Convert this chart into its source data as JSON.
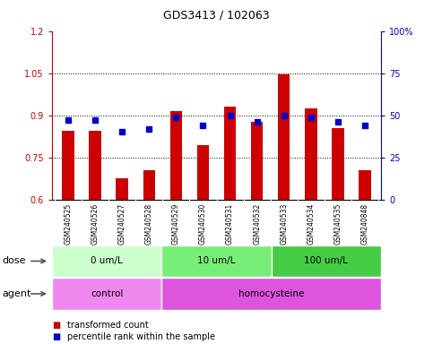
{
  "title": "GDS3413 / 102063",
  "samples": [
    "GSM240525",
    "GSM240526",
    "GSM240527",
    "GSM240528",
    "GSM240529",
    "GSM240530",
    "GSM240531",
    "GSM240532",
    "GSM240533",
    "GSM240534",
    "GSM240535",
    "GSM240848"
  ],
  "bar_values": [
    0.845,
    0.845,
    0.675,
    0.705,
    0.915,
    0.795,
    0.93,
    0.875,
    1.045,
    0.925,
    0.855,
    0.705
  ],
  "dot_values": [
    47,
    47,
    40,
    42,
    49,
    44,
    50,
    46,
    50,
    49,
    46,
    44
  ],
  "ylim_left": [
    0.6,
    1.2
  ],
  "ylim_right": [
    0,
    100
  ],
  "yticks_left": [
    0.6,
    0.75,
    0.9,
    1.05,
    1.2
  ],
  "yticks_right": [
    0,
    25,
    50,
    75,
    100
  ],
  "ytick_labels_left": [
    "0.6",
    "0.75",
    "0.9",
    "1.05",
    "1.2"
  ],
  "ytick_labels_right": [
    "0",
    "25",
    "50",
    "75",
    "100%"
  ],
  "bar_color": "#cc0000",
  "dot_color": "#0000cc",
  "dose_groups": [
    {
      "label": "0 um/L",
      "start": 0,
      "end": 4,
      "color": "#ccffcc"
    },
    {
      "label": "10 um/L",
      "start": 4,
      "end": 8,
      "color": "#77ee77"
    },
    {
      "label": "100 um/L",
      "start": 8,
      "end": 12,
      "color": "#44cc44"
    }
  ],
  "agent_groups": [
    {
      "label": "control",
      "start": 0,
      "end": 4,
      "color": "#ee88ee"
    },
    {
      "label": "homocysteine",
      "start": 4,
      "end": 12,
      "color": "#dd55dd"
    }
  ],
  "dose_label": "dose",
  "agent_label": "agent",
  "legend_bar_label": "transformed count",
  "legend_dot_label": "percentile rank within the sample",
  "dotted_line_values": [
    0.75,
    0.9,
    1.05
  ],
  "bg_color": "#ffffff",
  "sample_bg_color": "#cccccc",
  "title_fontsize": 9,
  "bar_width": 0.45
}
